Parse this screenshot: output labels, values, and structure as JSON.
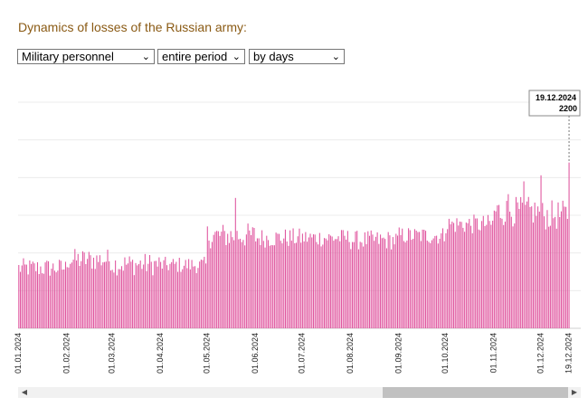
{
  "page": {
    "title": "Dynamics of losses of the Russian army:"
  },
  "controls": {
    "category": {
      "value": "Military personnel"
    },
    "period": {
      "value": "entire period"
    },
    "granularity": {
      "value": "by days"
    }
  },
  "tooltip": {
    "date": "19.12.2024",
    "value": "2200"
  },
  "chart_data": {
    "type": "bar",
    "color": "#e0569f",
    "ylim": [
      0,
      3000
    ],
    "grid": true,
    "x_start": "01.01.2024",
    "x_end": "19.12.2024",
    "x_ticks": [
      "01.01.2024",
      "01.02.2024",
      "01.03.2024",
      "01.04.2024",
      "01.05.2024",
      "01.06.2024",
      "01.07.2024",
      "01.08.2024",
      "01.09.2024",
      "01.10.2024",
      "01.11.2024",
      "01.12.2024",
      "19.12.2024"
    ],
    "monthly_profile": [
      {
        "month": "01.2024",
        "avg": 800,
        "spread": 130
      },
      {
        "month": "02.2024",
        "avg": 910,
        "spread": 150
      },
      {
        "month": "03.2024",
        "avg": 850,
        "spread": 150
      },
      {
        "month": "04.2024",
        "avg": 840,
        "spread": 110
      },
      {
        "month": "05.2024",
        "avg": 1230,
        "spread": 170
      },
      {
        "month": "06.2024",
        "avg": 1200,
        "spread": 130
      },
      {
        "month": "07.2024",
        "avg": 1200,
        "spread": 120
      },
      {
        "month": "08.2024",
        "avg": 1170,
        "spread": 130
      },
      {
        "month": "09.2024",
        "avg": 1230,
        "spread": 120
      },
      {
        "month": "10.2024",
        "avg": 1380,
        "spread": 130
      },
      {
        "month": "11.2024",
        "avg": 1550,
        "spread": 200
      },
      {
        "month": "12.2024",
        "avg": 1500,
        "spread": 200
      }
    ],
    "highlight_points": [
      {
        "date": "19.12.2024",
        "value": 2200
      },
      {
        "date": "01.12.2024",
        "value": 2030
      },
      {
        "date": "20.11.2024",
        "value": 1950
      },
      {
        "date": "10.11.2024",
        "value": 1780
      },
      {
        "date": "19.05.2024",
        "value": 1730
      }
    ]
  }
}
